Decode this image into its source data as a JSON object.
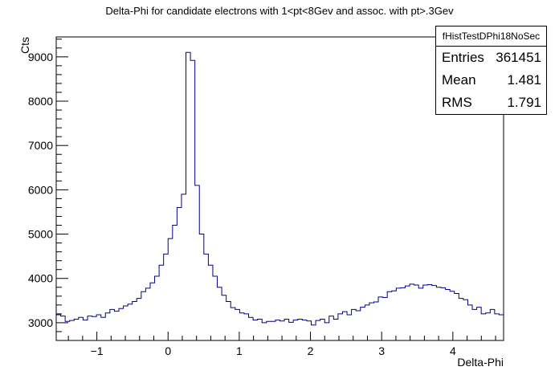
{
  "title": "Delta-Phi for candidate electrons with 1<pt<8Gev and assoc. with pt>.3Gev",
  "stats": {
    "name": "fHistTestDPhi18NoSec",
    "rows": [
      {
        "label": "Entries",
        "value": "361451"
      },
      {
        "label": "Mean",
        "value": "1.481"
      },
      {
        "label": "RMS",
        "value": "1.791"
      }
    ]
  },
  "chart_data": {
    "type": "bar",
    "style": "step-histogram",
    "xlabel": "Delta-Phi",
    "ylabel": "Cts",
    "xlim": [
      -1.5708,
      4.7124
    ],
    "ylim": [
      2600,
      9450
    ],
    "xticks": [
      -1,
      0,
      1,
      2,
      3,
      4
    ],
    "yticks": [
      3000,
      4000,
      5000,
      6000,
      7000,
      8000,
      9000
    ],
    "nbins": 100,
    "line_color": "#00008b",
    "values": [
      3180,
      3150,
      3030,
      3050,
      3080,
      3120,
      3060,
      3150,
      3140,
      3180,
      3120,
      3220,
      3300,
      3260,
      3320,
      3380,
      3420,
      3480,
      3550,
      3700,
      3780,
      3900,
      4050,
      4300,
      4550,
      4900,
      5200,
      5600,
      5900,
      9100,
      8920,
      6100,
      5000,
      4550,
      4300,
      4050,
      3800,
      3620,
      3480,
      3340,
      3300,
      3220,
      3200,
      3120,
      3060,
      3080,
      3000,
      3030,
      3030,
      3060,
      3040,
      3080,
      3010,
      3060,
      3080,
      3060,
      3040,
      2950,
      3050,
      3080,
      3000,
      3150,
      3080,
      3200,
      3250,
      3180,
      3300,
      3270,
      3350,
      3400,
      3450,
      3470,
      3580,
      3570,
      3700,
      3720,
      3780,
      3790,
      3830,
      3870,
      3850,
      3780,
      3850,
      3860,
      3840,
      3800,
      3790,
      3750,
      3710,
      3660,
      3550,
      3520,
      3400,
      3300,
      3350,
      3200,
      3220,
      3300,
      3200,
      3180
    ]
  }
}
